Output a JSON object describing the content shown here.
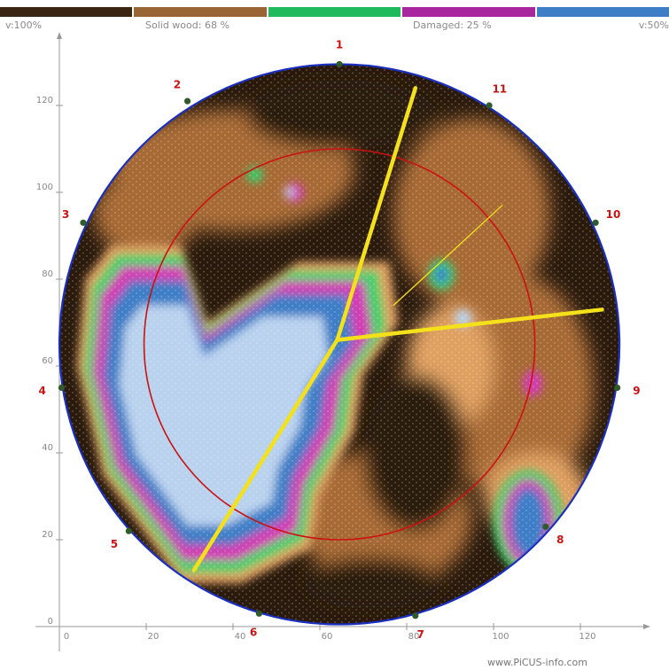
{
  "legend": [
    {
      "color": "#3a2412"
    },
    {
      "color": "#9a6535"
    },
    {
      "color": "#1fba5c"
    },
    {
      "color": "#a9279e"
    },
    {
      "color": "#3d7ec6"
    }
  ],
  "legend_labels": {
    "left": "v:100%",
    "solid": "Solid wood: 68 %",
    "damaged": "Damaged: 25 %",
    "right": "v:50%"
  },
  "footer": "www.PiCUS-info.com",
  "colors": {
    "outline": "#1a2fc0",
    "inner_circle": "#cc1111",
    "crack_lines": "#f5e11a",
    "sensor": "#2f5a2a",
    "sensor_label": "#cc1111",
    "axis": "#999999",
    "dark_wood": "#2a1a0c",
    "brown_wood": "#a86a36",
    "orange_wood": "#e0a060",
    "green": "#35d06a",
    "magenta": "#d23ab4",
    "blue": "#3d7ec6",
    "light_blue": "#b9d2ee"
  },
  "chart_data": {
    "type": "tomogram",
    "xlim": [
      0,
      130
    ],
    "ylim": [
      0,
      130
    ],
    "x_ticks": [
      "0",
      "20",
      "40",
      "60",
      "80",
      "100",
      "120"
    ],
    "y_ticks": [
      "0",
      "20",
      "40",
      "60",
      "80",
      "100",
      "120"
    ],
    "outline": {
      "cx": 64.5,
      "cy": 65,
      "r": 64.5
    },
    "inner_circle": {
      "cx": 64.5,
      "cy": 65,
      "r": 45
    },
    "center": [
      64,
      66
    ],
    "sensors": [
      {
        "label": "1",
        "x": 64.5,
        "y": 129.5
      },
      {
        "label": "11",
        "x": 99,
        "y": 120
      },
      {
        "label": "10",
        "x": 123.5,
        "y": 93
      },
      {
        "label": "9",
        "x": 128.5,
        "y": 55
      },
      {
        "label": "8",
        "x": 112,
        "y": 23
      },
      {
        "label": "7",
        "x": 82,
        "y": 2.5
      },
      {
        "label": "6",
        "x": 46,
        "y": 3
      },
      {
        "label": "5",
        "x": 16,
        "y": 22
      },
      {
        "label": "4",
        "x": 0.5,
        "y": 55
      },
      {
        "label": "3",
        "x": 5.5,
        "y": 93
      },
      {
        "label": "2",
        "x": 29.5,
        "y": 121
      }
    ],
    "cracks": [
      {
        "from": [
          64,
          66
        ],
        "to": [
          82,
          124
        ],
        "weight": "thick"
      },
      {
        "from": [
          64,
          66
        ],
        "to": [
          125,
          73
        ],
        "weight": "thick"
      },
      {
        "from": [
          64,
          66
        ],
        "to": [
          31,
          13
        ],
        "weight": "thick"
      },
      {
        "from": [
          77,
          74
        ],
        "to": [
          102,
          97
        ],
        "weight": "thin"
      }
    ]
  }
}
